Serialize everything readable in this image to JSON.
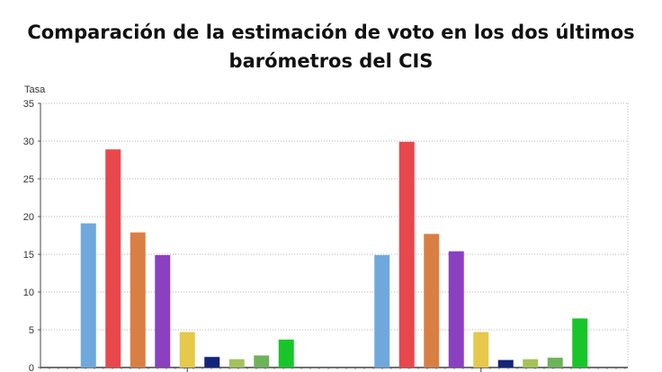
{
  "chart_data": {
    "type": "bar",
    "title_lines": [
      "Comparación de la estimación de voto en los dos últimos",
      "barómetros del CIS"
    ],
    "ylabel": "Tasa",
    "xlabel": "",
    "ylim": [
      0,
      35
    ],
    "yticks": [
      0,
      5,
      10,
      15,
      20,
      25,
      30,
      35
    ],
    "grid": true,
    "groups": 2,
    "series": [
      {
        "color": "#6fa8dc",
        "values": [
          19.1,
          14.9
        ]
      },
      {
        "color": "#e8474c",
        "values": [
          28.9,
          29.9
        ]
      },
      {
        "color": "#d97f44",
        "values": [
          17.9,
          17.7
        ]
      },
      {
        "color": "#8b3fc1",
        "values": [
          14.9,
          15.4
        ]
      },
      {
        "color": "#e6c84a",
        "values": [
          4.7,
          4.7
        ]
      },
      {
        "color": "#13257a",
        "values": [
          1.4,
          1.0
        ]
      },
      {
        "color": "#a3c25a",
        "values": [
          1.1,
          1.1
        ]
      },
      {
        "color": "#6db35a",
        "values": [
          1.6,
          1.3
        ]
      },
      {
        "color": "#18c62a",
        "values": [
          3.7,
          6.5
        ]
      }
    ]
  }
}
